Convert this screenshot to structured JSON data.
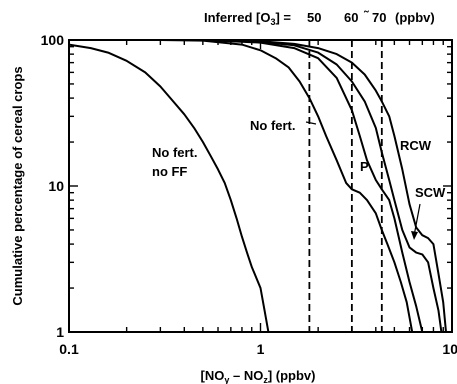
{
  "chart_data": {
    "type": "line",
    "x_scale": "log",
    "y_scale": "log",
    "xlim": [
      0.1,
      10
    ],
    "ylim": [
      1,
      100
    ],
    "x_ticks": [
      0.1,
      1,
      10
    ],
    "y_ticks": [
      1,
      10,
      100
    ],
    "x_tick_labels": [
      "0.1",
      "1",
      "10"
    ],
    "y_tick_labels": [
      "1",
      "10",
      "100"
    ],
    "xlabel_main": "[NO",
    "xlabel_sub1": "y",
    "xlabel_mid": " – NO",
    "xlabel_sub2": "z",
    "xlabel_tail": "] (ppbv)",
    "ylabel": "Cumulative percentage of cereal crops",
    "grid": false,
    "top_annotation": {
      "prefix": "Inferred [O",
      "sub": "3",
      "suffix": "] =",
      "v50": "50",
      "v60": "60",
      "tilde": "˜",
      "v70": "70",
      "unit": "(ppbv)"
    },
    "vertical_lines": [
      1.8,
      3.0,
      4.3
    ],
    "series": [
      {
        "name": "No fert. no FF",
        "label_line1": "No fert.",
        "label_line2": "no FF",
        "points": [
          [
            0.1,
            93
          ],
          [
            0.13,
            88
          ],
          [
            0.16,
            82
          ],
          [
            0.2,
            72
          ],
          [
            0.25,
            60
          ],
          [
            0.3,
            48
          ],
          [
            0.35,
            38
          ],
          [
            0.4,
            31
          ],
          [
            0.45,
            25
          ],
          [
            0.5,
            20
          ],
          [
            0.55,
            16
          ],
          [
            0.6,
            13
          ],
          [
            0.65,
            10.5
          ],
          [
            0.7,
            8
          ],
          [
            0.75,
            6
          ],
          [
            0.8,
            4.5
          ],
          [
            0.85,
            3.5
          ],
          [
            0.9,
            2.8
          ],
          [
            1.0,
            2.0
          ],
          [
            1.05,
            1.4
          ],
          [
            1.1,
            1.0
          ]
        ]
      },
      {
        "name": "No fert.",
        "label": "No fert.",
        "points": [
          [
            0.1,
            100
          ],
          [
            0.3,
            100
          ],
          [
            0.5,
            99
          ],
          [
            0.8,
            93
          ],
          [
            1.0,
            85
          ],
          [
            1.2,
            75
          ],
          [
            1.4,
            65
          ],
          [
            1.6,
            52
          ],
          [
            1.8,
            40
          ],
          [
            2.0,
            30
          ],
          [
            2.2,
            22
          ],
          [
            2.5,
            15
          ],
          [
            2.8,
            10.5
          ],
          [
            3.0,
            9.5
          ],
          [
            3.3,
            9
          ],
          [
            3.6,
            8
          ],
          [
            4.0,
            6.5
          ],
          [
            4.3,
            5
          ],
          [
            4.6,
            4
          ],
          [
            5.0,
            3
          ],
          [
            5.4,
            2.2
          ],
          [
            5.8,
            1.6
          ],
          [
            6.2,
            1.0
          ]
        ]
      },
      {
        "name": "P",
        "label": "P",
        "points": [
          [
            0.1,
            100
          ],
          [
            0.5,
            100
          ],
          [
            1.0,
            96
          ],
          [
            1.5,
            88
          ],
          [
            2.0,
            75
          ],
          [
            2.5,
            55
          ],
          [
            3.0,
            33
          ],
          [
            3.3,
            22
          ],
          [
            3.6,
            15
          ],
          [
            4.0,
            11
          ],
          [
            4.3,
            9.5
          ],
          [
            4.7,
            8
          ],
          [
            5.0,
            6
          ],
          [
            5.5,
            3.5
          ],
          [
            6.0,
            2.2
          ],
          [
            6.5,
            1.5
          ],
          [
            7.0,
            1.0
          ]
        ]
      },
      {
        "name": "SCW",
        "label": "SCW",
        "points": [
          [
            0.1,
            100
          ],
          [
            0.5,
            100
          ],
          [
            1.0,
            97
          ],
          [
            1.5,
            92
          ],
          [
            2.0,
            82
          ],
          [
            2.5,
            68
          ],
          [
            3.0,
            52
          ],
          [
            3.5,
            38
          ],
          [
            4.0,
            25
          ],
          [
            4.3,
            17
          ],
          [
            4.7,
            11
          ],
          [
            5.0,
            8
          ],
          [
            5.5,
            5
          ],
          [
            6.0,
            3.8
          ],
          [
            6.5,
            3.5
          ],
          [
            7.0,
            3.4
          ],
          [
            7.5,
            3.0
          ],
          [
            8.0,
            2.0
          ],
          [
            8.5,
            1.4
          ],
          [
            8.8,
            1.0
          ]
        ]
      },
      {
        "name": "RCW",
        "label": "RCW",
        "points": [
          [
            0.1,
            100
          ],
          [
            0.5,
            100
          ],
          [
            1.0,
            98
          ],
          [
            1.5,
            94
          ],
          [
            2.0,
            88
          ],
          [
            2.5,
            80
          ],
          [
            3.0,
            70
          ],
          [
            3.5,
            58
          ],
          [
            4.0,
            45
          ],
          [
            4.3,
            38
          ],
          [
            4.7,
            30
          ],
          [
            5.0,
            22
          ],
          [
            5.5,
            13
          ],
          [
            6.0,
            7.5
          ],
          [
            6.5,
            5.2
          ],
          [
            7.0,
            4.6
          ],
          [
            7.5,
            4.4
          ],
          [
            8.0,
            4.0
          ],
          [
            8.5,
            2.5
          ],
          [
            9.0,
            1.6
          ],
          [
            9.3,
            1.0
          ]
        ]
      }
    ]
  }
}
